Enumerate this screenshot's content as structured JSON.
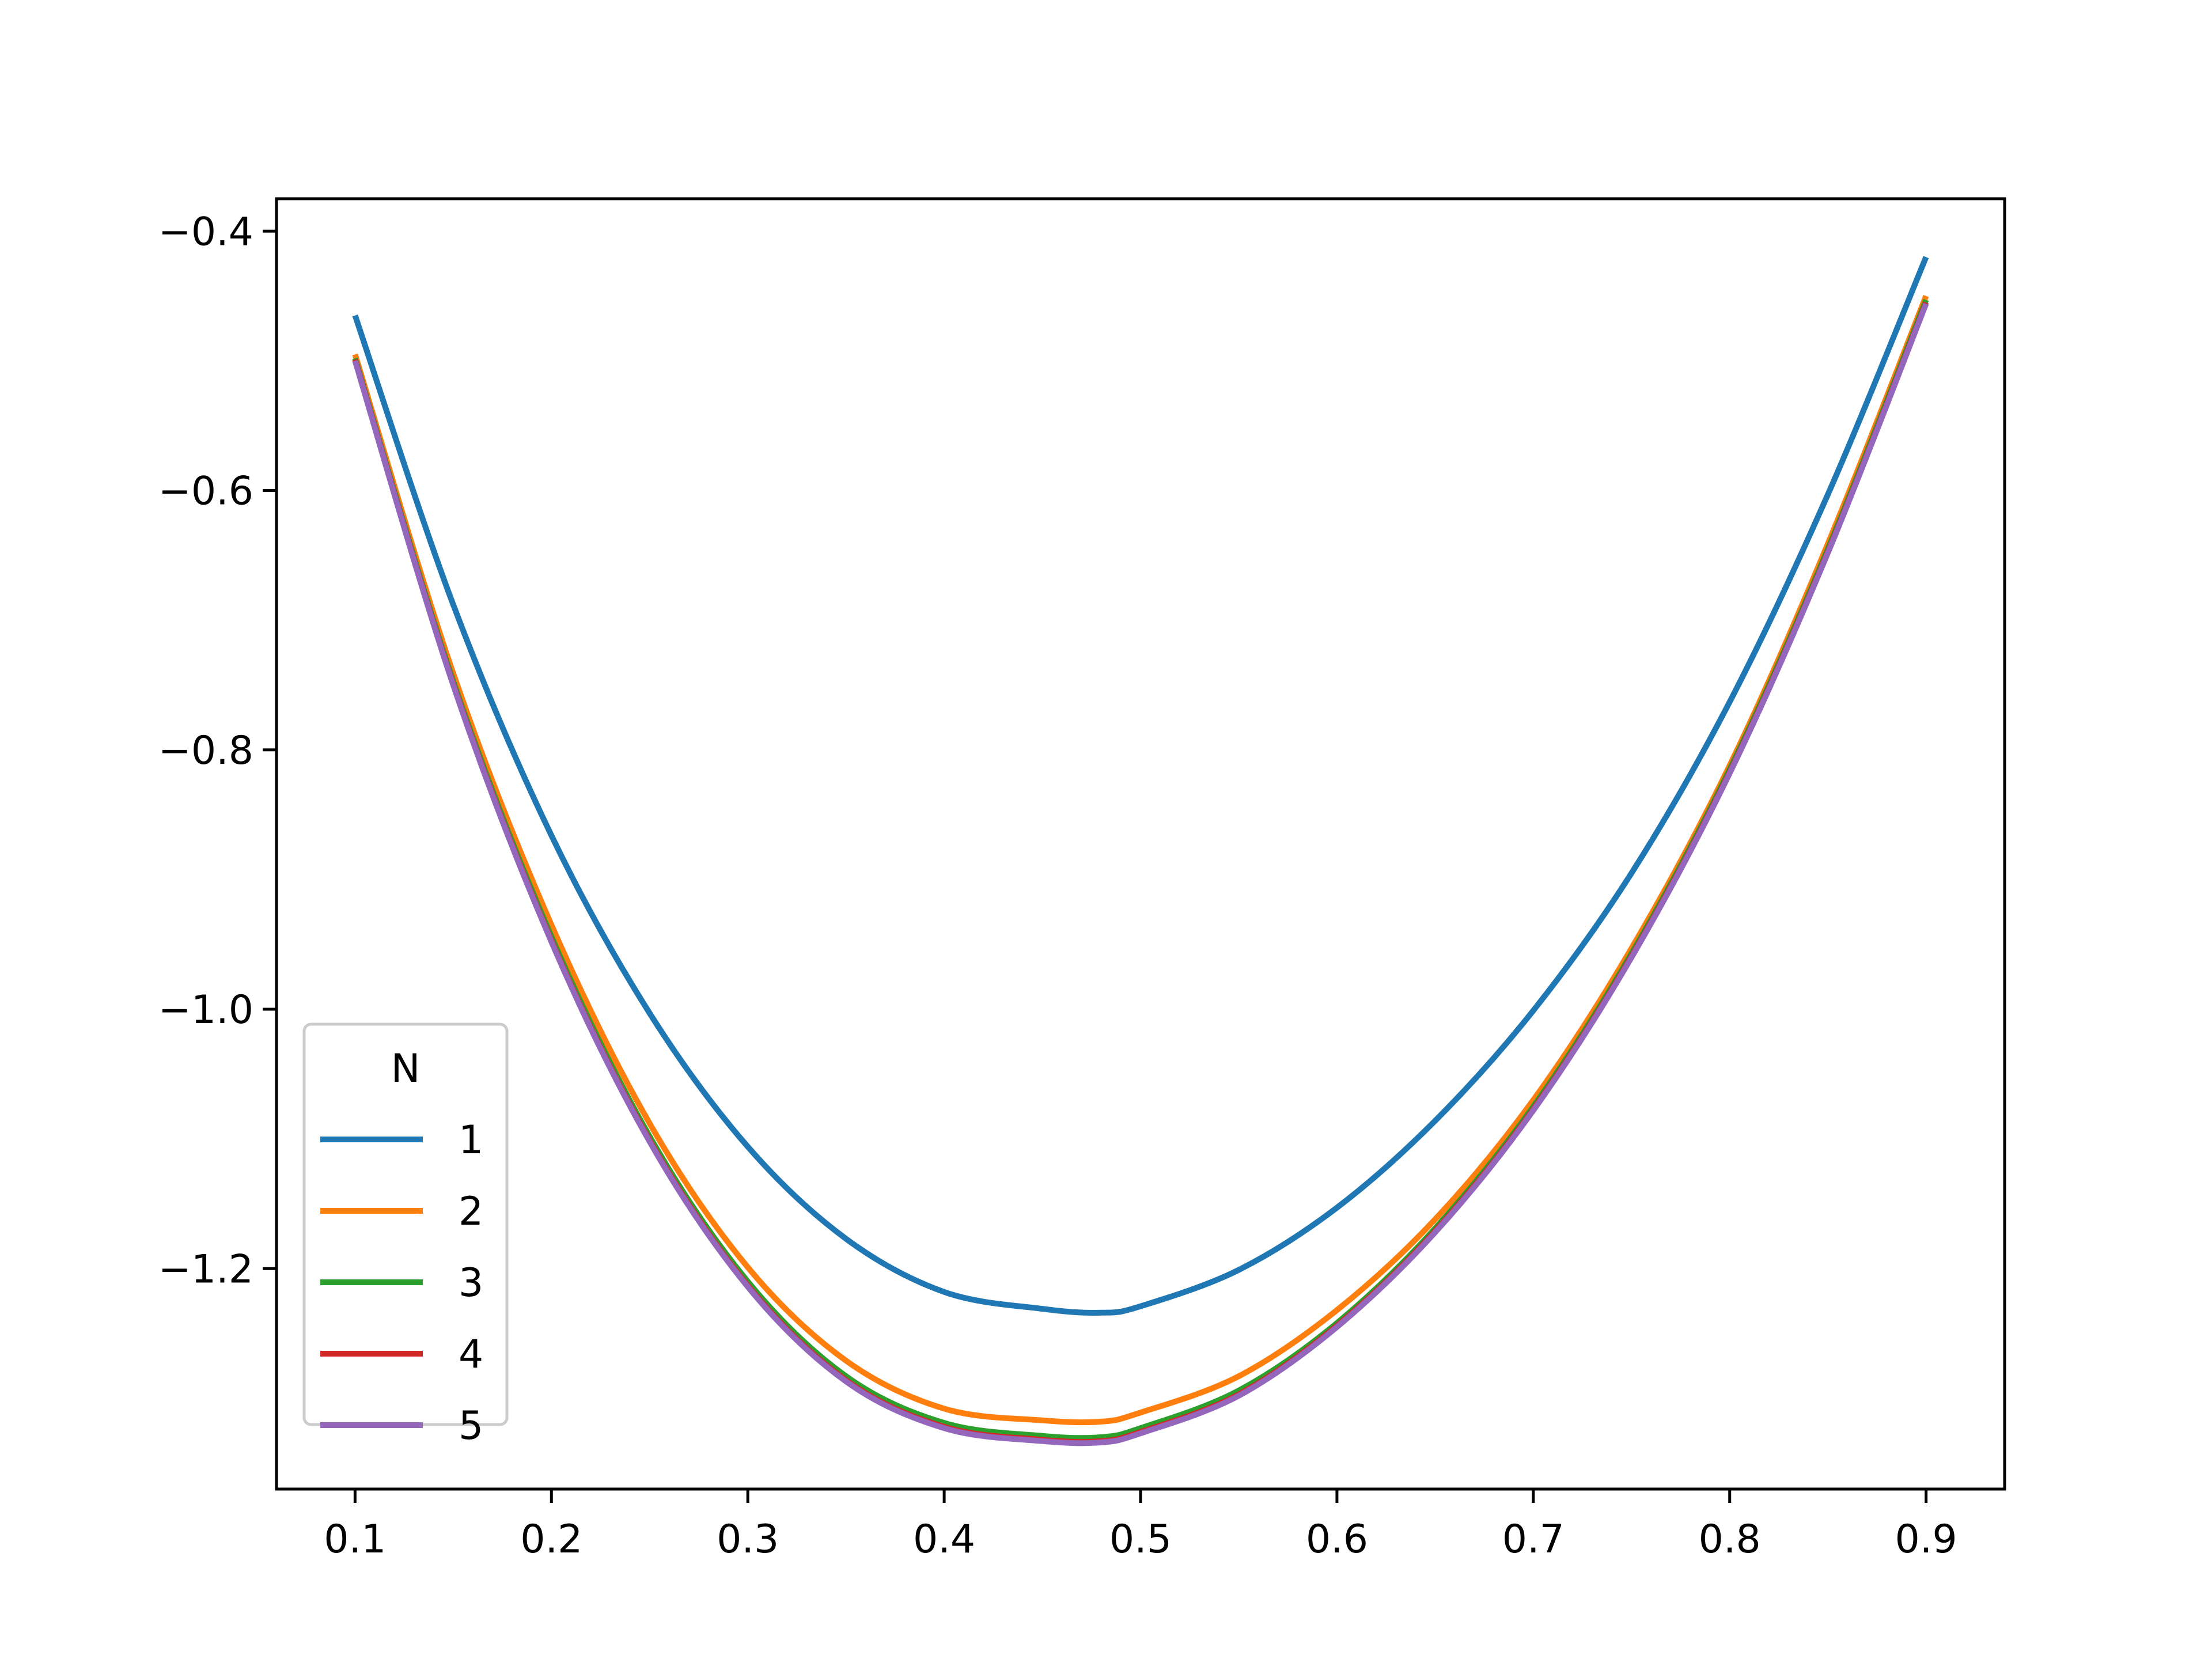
{
  "chart_data": {
    "type": "line",
    "title": "",
    "xlabel": "",
    "ylabel": "",
    "xlim": [
      0.06,
      0.94
    ],
    "ylim": [
      -1.37,
      -0.375
    ],
    "xticks": [
      0.1,
      0.2,
      0.3,
      0.4,
      0.5,
      0.6,
      0.7,
      0.8,
      0.9
    ],
    "xtick_labels": [
      "0.1",
      "0.2",
      "0.3",
      "0.4",
      "0.5",
      "0.6",
      "0.7",
      "0.8",
      "0.9"
    ],
    "yticks": [
      -0.4,
      -0.6,
      -0.8,
      -1.0,
      -1.2
    ],
    "ytick_labels": [
      "−0.4",
      "−0.6",
      "−0.8",
      "−1.0",
      "−1.2"
    ],
    "grid": false,
    "legend": {
      "title": "N",
      "placement": "lower-left"
    },
    "x": [
      0.1,
      0.15,
      0.2,
      0.25,
      0.3,
      0.35,
      0.4,
      0.45,
      0.48,
      0.5,
      0.55,
      0.6,
      0.65,
      0.7,
      0.75,
      0.8,
      0.85,
      0.9
    ],
    "series": [
      {
        "name": "1",
        "color": "#1f77b4",
        "values": [
          -0.465,
          -0.688,
          -0.866,
          -1.003,
          -1.106,
          -1.177,
          -1.218,
          -1.231,
          -1.234,
          -1.229,
          -1.201,
          -1.153,
          -1.086,
          -1.001,
          -0.895,
          -0.763,
          -0.603,
          -0.42
        ]
      },
      {
        "name": "2",
        "color": "#ff7f0e",
        "values": [
          -0.495,
          -0.741,
          -0.935,
          -1.088,
          -1.199,
          -1.271,
          -1.308,
          -1.317,
          -1.318,
          -1.311,
          -1.283,
          -1.232,
          -1.162,
          -1.07,
          -0.953,
          -0.812,
          -0.641,
          -0.45
        ]
      },
      {
        "name": "3",
        "color": "#2ca02c",
        "values": [
          -0.498,
          -0.747,
          -0.944,
          -1.098,
          -1.21,
          -1.283,
          -1.319,
          -1.329,
          -1.33,
          -1.323,
          -1.294,
          -1.242,
          -1.169,
          -1.075,
          -0.957,
          -0.815,
          -0.645,
          -0.453
        ]
      },
      {
        "name": "4",
        "color": "#d62728",
        "values": [
          -0.499,
          -0.749,
          -0.947,
          -1.101,
          -1.213,
          -1.286,
          -1.322,
          -1.332,
          -1.333,
          -1.326,
          -1.297,
          -1.244,
          -1.171,
          -1.077,
          -0.959,
          -0.817,
          -0.647,
          -0.455
        ]
      },
      {
        "name": "5",
        "color": "#9467bd",
        "values": [
          -0.5,
          -0.75,
          -0.948,
          -1.102,
          -1.214,
          -1.287,
          -1.323,
          -1.333,
          -1.334,
          -1.327,
          -1.298,
          -1.245,
          -1.172,
          -1.078,
          -0.96,
          -0.818,
          -0.648,
          -0.456
        ]
      }
    ]
  }
}
